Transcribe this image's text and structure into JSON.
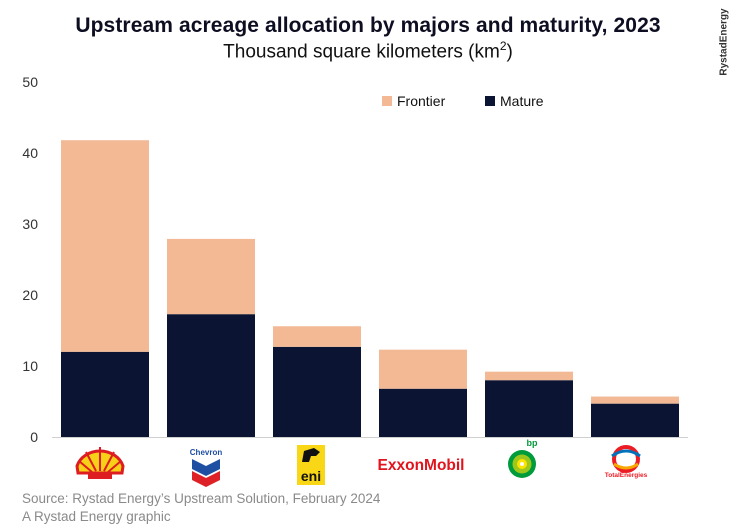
{
  "header": {
    "title": "Upstream acreage allocation by majors and maturity, 2023",
    "subtitle_main": "Thousand square kilometers (km",
    "subtitle_sup": "2",
    "subtitle_end": ")",
    "brand": "RystadEnergy"
  },
  "footer": {
    "source": "Source: Rystad Energy’s Upstream Solution, February 2024",
    "credit": "A Rystad Energy graphic"
  },
  "logos": {
    "chevron": "Chevron",
    "eni": "eni",
    "exxon": "ExxonMobil",
    "bp": "bp",
    "total": "TotalEnergies"
  },
  "chart_data": {
    "type": "bar",
    "stacked": true,
    "title": "Upstream acreage allocation by majors and maturity, 2023",
    "subtitle": "Thousand square kilometers (km2)",
    "categories": [
      "Shell",
      "Chevron",
      "Eni",
      "ExxonMobil",
      "bp",
      "TotalEnergies"
    ],
    "series": [
      {
        "name": "Mature",
        "color": "#0b1533",
        "values": [
          12.0,
          17.3,
          12.7,
          6.8,
          8.0,
          4.7
        ]
      },
      {
        "name": "Frontier",
        "color": "#f2b994",
        "values": [
          29.8,
          10.6,
          2.9,
          5.5,
          1.2,
          1.0
        ]
      }
    ],
    "legend": [
      "Frontier",
      "Mature"
    ],
    "legend_position": "top-right",
    "ylim": [
      0,
      50
    ],
    "yticks": [
      0,
      10,
      20,
      30,
      40,
      50
    ],
    "grid": false,
    "xlabel": "",
    "ylabel": ""
  }
}
